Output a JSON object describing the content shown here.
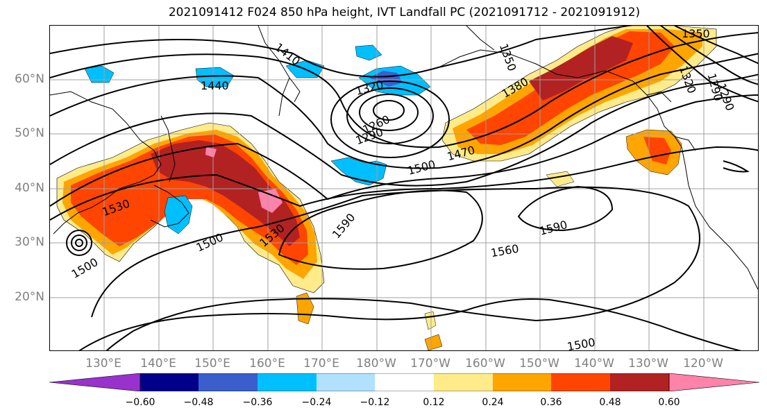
{
  "title": "2021091412 F024 850 hPa height, IVT Landfall PC (2021091712 - 2021091912)",
  "latitude_labels": [
    {
      "label": "60°N",
      "value": 60
    },
    {
      "label": "50°N",
      "value": 50
    },
    {
      "label": "40°N",
      "value": 40
    },
    {
      "label": "30°N",
      "value": 30
    },
    {
      "label": "20°N",
      "value": 20
    }
  ],
  "longitude_labels": [
    {
      "label": "130°E",
      "value": 130
    },
    {
      "label": "140°E",
      "value": 140
    },
    {
      "label": "150°E",
      "value": 150
    },
    {
      "label": "160°E",
      "value": 160
    },
    {
      "label": "170°E",
      "value": 170
    },
    {
      "label": "180°W",
      "value": 180
    },
    {
      "label": "170°W",
      "value": 190
    },
    {
      "label": "160°W",
      "value": 200
    },
    {
      "label": "150°W",
      "value": 210
    },
    {
      "label": "140°W",
      "value": 220
    },
    {
      "label": "130°W",
      "value": 230
    },
    {
      "label": "120°W",
      "value": 240
    }
  ],
  "contour_labels": [
    "1410",
    "1440",
    "1320",
    "1350",
    "1380",
    "1290",
    "1260",
    "1290",
    "1350",
    "1320",
    "1290",
    "1500",
    "1470",
    "1530",
    "1500",
    "1500",
    "1530",
    "1590",
    "1590",
    "1560",
    "1500"
  ],
  "colorbar": {
    "colors": [
      "#9932cc",
      "#00008b",
      "#3a5fcd",
      "#00bfff",
      "#b0e2ff",
      "#ffffff",
      "#ffeb8a",
      "#ffa500",
      "#ff4500",
      "#b22222",
      "#ff82ab"
    ],
    "tick_labels": [
      "−0.60",
      "−0.48",
      "−0.36",
      "−0.24",
      "−0.12",
      "0.12",
      "0.24",
      "0.36",
      "0.48",
      "0.60"
    ]
  },
  "legend_colors": {
    "grid": "#a0a0a0",
    "contour": "#000000",
    "coastline": "#000000"
  }
}
